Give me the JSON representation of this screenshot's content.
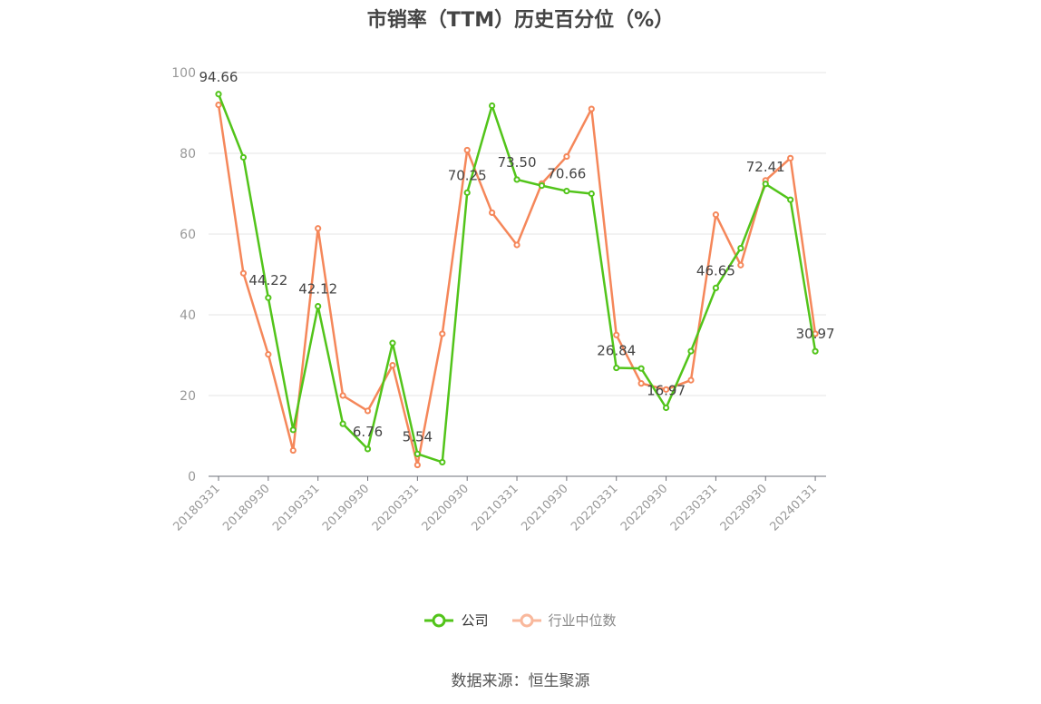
{
  "chart_data": {
    "type": "line",
    "title": "市销率（TTM）历史百分位（%）",
    "source": "数据来源：恒生聚源",
    "ylim": [
      0,
      100
    ],
    "yticks": [
      "0",
      "20",
      "40",
      "60",
      "80",
      "100"
    ],
    "x_tick_labels": [
      "20180331",
      "20180930",
      "20190331",
      "20190930",
      "20200331",
      "20200930",
      "20210331",
      "20210930",
      "20220331",
      "20220930",
      "20230331",
      "20230930",
      "20240131"
    ],
    "x": [
      "20180331",
      "20180630",
      "20180930",
      "20181231",
      "20190331",
      "20190630",
      "20190930",
      "20191231",
      "20200331",
      "20200630",
      "20200930",
      "20201231",
      "20210331",
      "20210630",
      "20210930",
      "20211231",
      "20220331",
      "20220630",
      "20220930",
      "20221231",
      "20230331",
      "20230630",
      "20230930",
      "20231231",
      "20240131"
    ],
    "series": [
      {
        "name": "公司",
        "color": "#52c41a",
        "values": [
          94.66,
          79,
          44.22,
          11.5,
          42.12,
          13,
          6.76,
          33,
          5.54,
          3.5,
          70.25,
          91.8,
          73.5,
          72,
          70.66,
          70,
          26.84,
          26.7,
          16.97,
          31,
          46.65,
          56.5,
          72.41,
          68.5,
          30.97
        ],
        "labels": [
          "94.66",
          "",
          "44.22",
          "",
          "42.12",
          "",
          "6.76",
          "",
          "5.54",
          "",
          "70.25",
          "",
          "73.50",
          "",
          "70.66",
          "",
          "26.84",
          "",
          "16.97",
          "",
          "46.65",
          "",
          "72.41",
          "",
          "30.97"
        ]
      },
      {
        "name": "行业中位数",
        "color": "#f5875a",
        "values": [
          92,
          50.3,
          30.2,
          6.4,
          61.4,
          20,
          16.2,
          27.5,
          2.8,
          35.3,
          80.8,
          65.3,
          57.3,
          72.5,
          79.2,
          91,
          35,
          23,
          21.5,
          23.8,
          64.8,
          52.3,
          73.3,
          78.8,
          35.3
        ]
      }
    ],
    "legend": [
      "公司",
      "行业中位数"
    ],
    "grid": true
  }
}
